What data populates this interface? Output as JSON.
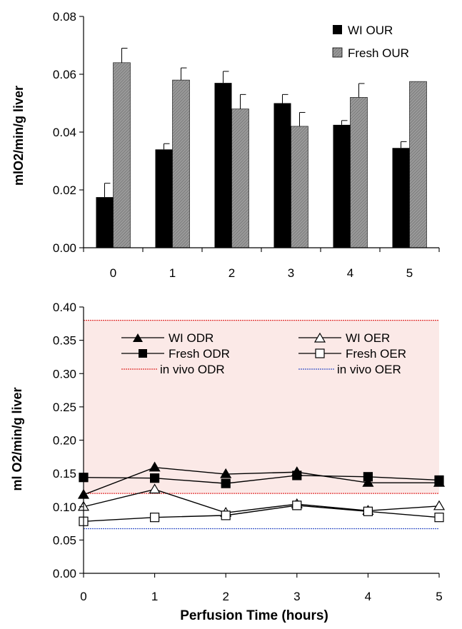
{
  "colors": {
    "wi_bar": "#000000",
    "fresh_bar": "#8c8c8c",
    "shade": "#fbe9e7",
    "in_vivo_odr": "#e03030",
    "in_vivo_oer": "#3a56c8"
  },
  "chart_data": [
    {
      "type": "bar",
      "ylabel": "mlO2/min/g liver",
      "xlabel": "",
      "ylim": [
        0,
        0.08
      ],
      "yticks": [
        "0.00",
        "0.02",
        "0.04",
        "0.06",
        "0.08"
      ],
      "categories": [
        "0",
        "1",
        "2",
        "3",
        "4",
        "5"
      ],
      "legend_position": "top-right",
      "series": [
        {
          "name": "WI OUR",
          "values": [
            0.0175,
            0.034,
            0.057,
            0.05,
            0.0425,
            0.0345
          ],
          "errors": [
            0.0048,
            0.002,
            0.004,
            0.003,
            0.0015,
            0.0022
          ]
        },
        {
          "name": "Fresh OUR",
          "values": [
            0.064,
            0.058,
            0.048,
            0.042,
            0.052,
            0.0575
          ],
          "errors": [
            0.005,
            0.0042,
            0.005,
            0.0048,
            0.0048,
            0.0
          ]
        }
      ]
    },
    {
      "type": "line",
      "ylabel": "ml O2/min/g liver",
      "xlabel": "Perfusion Time (hours)",
      "ylim": [
        0,
        0.4
      ],
      "xlim": [
        0,
        5
      ],
      "yticks": [
        "0.00",
        "0.05",
        "0.10",
        "0.15",
        "0.20",
        "0.25",
        "0.30",
        "0.35",
        "0.40"
      ],
      "xticks": [
        "0",
        "1",
        "2",
        "3",
        "4",
        "5"
      ],
      "x": [
        0,
        1,
        2,
        3,
        4,
        5
      ],
      "legend_position": "top",
      "series": [
        {
          "name": "WI ODR",
          "marker": "filled-triangle",
          "values": [
            0.118,
            0.159,
            0.149,
            0.152,
            0.136,
            0.136
          ]
        },
        {
          "name": "WI OER",
          "marker": "open-triangle",
          "values": [
            0.1,
            0.126,
            0.091,
            0.104,
            0.094,
            0.101
          ]
        },
        {
          "name": "Fresh ODR",
          "marker": "filled-square",
          "values": [
            0.144,
            0.143,
            0.135,
            0.147,
            0.145,
            0.14
          ]
        },
        {
          "name": "Fresh OER",
          "marker": "open-square",
          "values": [
            0.078,
            0.084,
            0.087,
            0.102,
            0.093,
            0.084
          ]
        }
      ],
      "reference_lines": [
        {
          "name": "in vivo ODR",
          "values": [
            0.38,
            0.12
          ]
        },
        {
          "name": "in vivo OER",
          "values": [
            0.067
          ]
        }
      ]
    }
  ]
}
